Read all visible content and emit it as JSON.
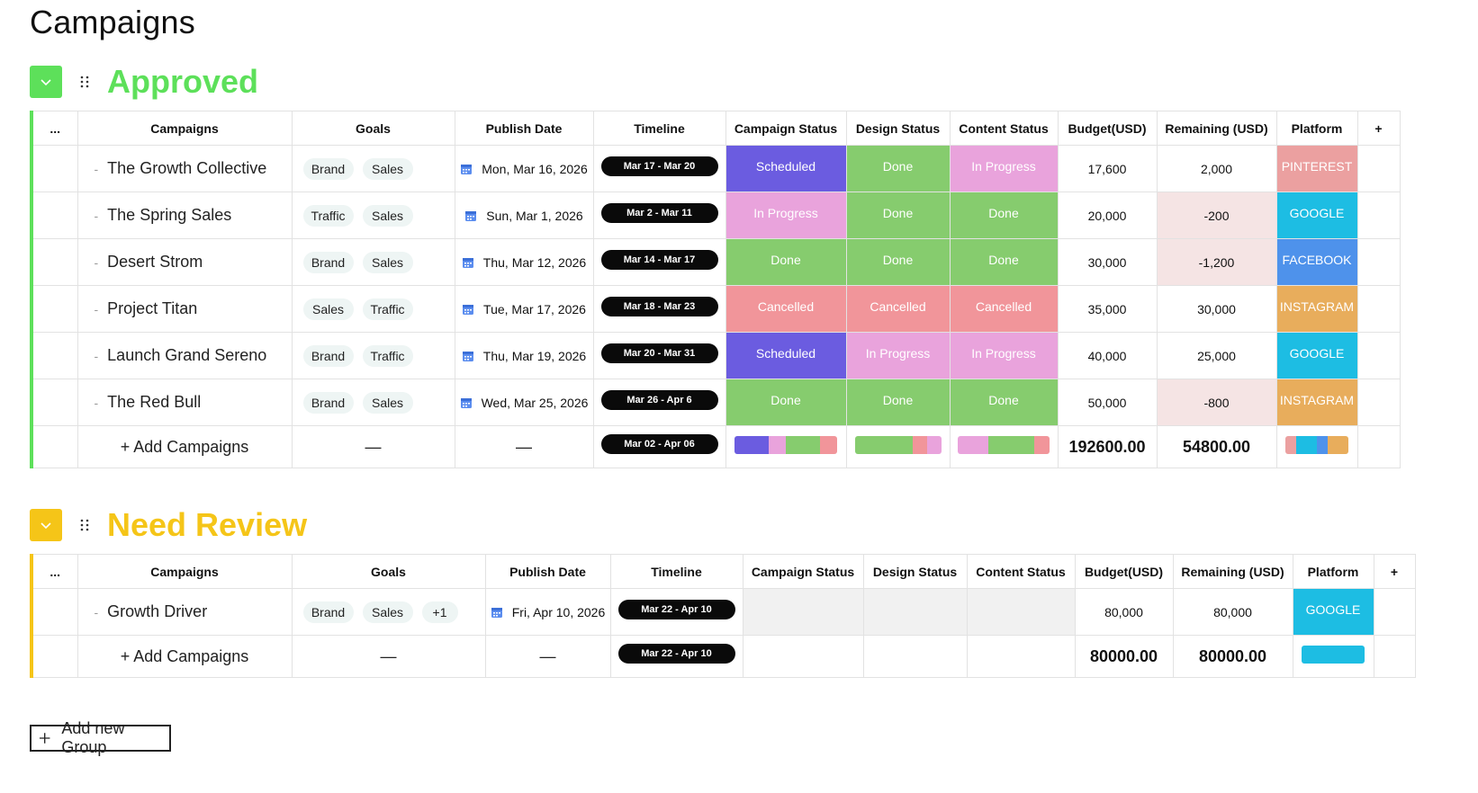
{
  "page": {
    "title": "Campaigns"
  },
  "colors": {
    "approved": "#5de05a",
    "review": "#f5c518",
    "scheduled": "#6b5ce0",
    "in_progress": "#e9a3dc",
    "done": "#86cc6e",
    "cancelled": "#f1959a",
    "pinterest": "#eba0a0",
    "google": "#1dbde3",
    "facebook": "#4e92eb",
    "instagram": "#e8ad5c"
  },
  "columns": {
    "menu": "...",
    "campaigns": "Campaigns",
    "goals": "Goals",
    "publish_date": "Publish Date",
    "timeline": "Timeline",
    "campaign_status": "Campaign Status",
    "design_status": "Design Status",
    "content_status": "Content Status",
    "budget": "Budget(USD)",
    "remaining": "Remaining (USD)",
    "platform": "Platform",
    "add_column": "+"
  },
  "groups": [
    {
      "title": "Approved",
      "color_key": "approved",
      "rows": [
        {
          "name": "The Growth Collective",
          "goals": [
            "Brand",
            "Sales"
          ],
          "publish_date": "Mon, Mar 16, 2026",
          "timeline": "Mar 17 - Mar 20",
          "campaign_status": "Scheduled",
          "campaign_status_key": "scheduled",
          "design_status": "Done",
          "design_status_key": "done",
          "content_status": "In Progress",
          "content_status_key": "in_progress",
          "budget": "17,600",
          "remaining": "2,000",
          "remaining_negative": false,
          "platform": "PINTEREST",
          "platform_key": "pinterest"
        },
        {
          "name": "The Spring Sales",
          "goals": [
            "Traffic",
            "Sales"
          ],
          "publish_date": "Sun, Mar 1, 2026",
          "timeline": "Mar 2 - Mar 11",
          "campaign_status": "In Progress",
          "campaign_status_key": "in_progress",
          "design_status": "Done",
          "design_status_key": "done",
          "content_status": "Done",
          "content_status_key": "done",
          "budget": "20,000",
          "remaining": "-200",
          "remaining_negative": true,
          "platform": "GOOGLE",
          "platform_key": "google"
        },
        {
          "name": "Desert Strom",
          "goals": [
            "Brand",
            "Sales"
          ],
          "publish_date": "Thu, Mar 12, 2026",
          "timeline": "Mar 14 - Mar 17",
          "campaign_status": "Done",
          "campaign_status_key": "done",
          "design_status": "Done",
          "design_status_key": "done",
          "content_status": "Done",
          "content_status_key": "done",
          "budget": "30,000",
          "remaining": "-1,200",
          "remaining_negative": true,
          "platform": "FACEBOOK",
          "platform_key": "facebook"
        },
        {
          "name": "Project Titan",
          "goals": [
            "Sales",
            "Traffic"
          ],
          "publish_date": "Tue, Mar 17, 2026",
          "timeline": "Mar 18 - Mar 23",
          "campaign_status": "Cancelled",
          "campaign_status_key": "cancelled",
          "design_status": "Cancelled",
          "design_status_key": "cancelled",
          "content_status": "Cancelled",
          "content_status_key": "cancelled",
          "budget": "35,000",
          "remaining": "30,000",
          "remaining_negative": false,
          "platform": "INSTAGRAM",
          "platform_key": "instagram"
        },
        {
          "name": "Launch Grand Sereno",
          "goals": [
            "Brand",
            "Traffic"
          ],
          "publish_date": "Thu, Mar 19, 2026",
          "timeline": "Mar 20 - Mar 31",
          "campaign_status": "Scheduled",
          "campaign_status_key": "scheduled",
          "design_status": "In Progress",
          "design_status_key": "in_progress",
          "content_status": "In Progress",
          "content_status_key": "in_progress",
          "budget": "40,000",
          "remaining": "25,000",
          "remaining_negative": false,
          "platform": "GOOGLE",
          "platform_key": "google"
        },
        {
          "name": "The Red Bull",
          "goals": [
            "Brand",
            "Sales"
          ],
          "publish_date": "Wed, Mar 25, 2026",
          "timeline": "Mar 26 - Apr 6",
          "campaign_status": "Done",
          "campaign_status_key": "done",
          "design_status": "Done",
          "design_status_key": "done",
          "content_status": "Done",
          "content_status_key": "done",
          "budget": "50,000",
          "remaining": "-800",
          "remaining_negative": true,
          "platform": "INSTAGRAM",
          "platform_key": "instagram"
        }
      ],
      "summary": {
        "add_label": "+ Add Campaigns",
        "goals": "—",
        "publish_date": "—",
        "timeline": "Mar 02 - Apr 06",
        "budget_total": "192600.00",
        "remaining_total": "54800.00",
        "campaign_status_bar": [
          {
            "key": "scheduled",
            "share": 2
          },
          {
            "key": "in_progress",
            "share": 1
          },
          {
            "key": "done",
            "share": 2
          },
          {
            "key": "cancelled",
            "share": 1
          }
        ],
        "design_status_bar": [
          {
            "key": "done",
            "share": 4
          },
          {
            "key": "cancelled",
            "share": 1
          },
          {
            "key": "in_progress",
            "share": 1
          }
        ],
        "content_status_bar": [
          {
            "key": "in_progress",
            "share": 2
          },
          {
            "key": "done",
            "share": 3
          },
          {
            "key": "cancelled",
            "share": 1
          }
        ],
        "platform_bar": [
          {
            "key": "pinterest",
            "share": 1
          },
          {
            "key": "google",
            "share": 2
          },
          {
            "key": "facebook",
            "share": 1
          },
          {
            "key": "instagram",
            "share": 2
          }
        ]
      }
    },
    {
      "title": "Need Review",
      "color_key": "review",
      "rows": [
        {
          "name": "Growth Driver",
          "goals": [
            "Brand",
            "Sales"
          ],
          "goals_more": "+1",
          "publish_date": "Fri, Apr 10, 2026",
          "timeline": "Mar 22 - Apr 10",
          "campaign_status": "",
          "design_status": "",
          "content_status": "",
          "budget": "80,000",
          "remaining": "80,000",
          "remaining_negative": false,
          "platform": "GOOGLE",
          "platform_key": "google"
        }
      ],
      "summary": {
        "add_label": "+ Add Campaigns",
        "goals": "—",
        "publish_date": "—",
        "timeline": "Mar 22 - Apr 10",
        "budget_total": "80000.00",
        "remaining_total": "80000.00",
        "platform_bar": [
          {
            "key": "google",
            "share": 1
          }
        ]
      }
    }
  ],
  "footer": {
    "add_group_label": "Add new Group"
  }
}
